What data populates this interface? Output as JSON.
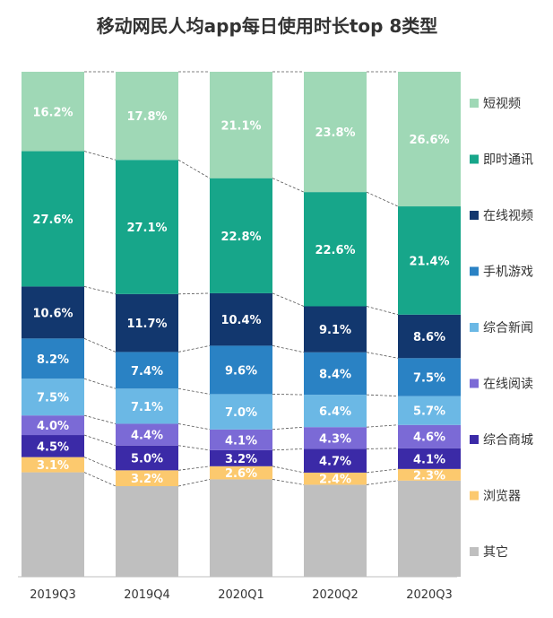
{
  "chart_data": {
    "type": "bar",
    "stacked": true,
    "percent": true,
    "title": "移动网民人均app每日使用时长top 8类型",
    "categories": [
      "2019Q3",
      "2019Q4",
      "2020Q1",
      "2020Q2",
      "2020Q3"
    ],
    "series": [
      {
        "name": "其它",
        "color": "#bfbfbf",
        "values": [
          21.3,
          18.3,
          19.3,
          18.2,
          19.0
        ],
        "labels": [
          "",
          "",
          "",
          "",
          ""
        ]
      },
      {
        "name": "浏览器",
        "color": "#fcc96e",
        "values": [
          3.1,
          3.2,
          2.6,
          2.4,
          2.3
        ],
        "labels": [
          "3.1%",
          "3.2%",
          "2.6%",
          "2.4%",
          "2.3%"
        ]
      },
      {
        "name": "综合商城",
        "color": "#3b2aa7",
        "values": [
          4.5,
          5.0,
          3.2,
          4.7,
          4.1
        ],
        "labels": [
          "4.5%",
          "5.0%",
          "3.2%",
          "4.7%",
          "4.1%"
        ]
      },
      {
        "name": "在线阅读",
        "color": "#7b6ad6",
        "values": [
          4.0,
          4.4,
          4.1,
          4.3,
          4.6
        ],
        "labels": [
          "4.0%",
          "4.4%",
          "4.1%",
          "4.3%",
          "4.6%"
        ]
      },
      {
        "name": "综合新闻",
        "color": "#6bb8e5",
        "values": [
          7.5,
          7.1,
          7.0,
          6.4,
          5.7
        ],
        "labels": [
          "7.5%",
          "7.1%",
          "7.0%",
          "6.4%",
          "5.7%"
        ]
      },
      {
        "name": "手机游戏",
        "color": "#2a82c4",
        "values": [
          8.2,
          7.4,
          9.6,
          8.4,
          7.5
        ],
        "labels": [
          "8.2%",
          "7.4%",
          "9.6%",
          "8.4%",
          "7.5%"
        ]
      },
      {
        "name": "在线视频",
        "color": "#12376e",
        "values": [
          10.6,
          11.7,
          10.4,
          9.1,
          8.6
        ],
        "labels": [
          "10.6%",
          "11.7%",
          "10.4%",
          "9.1%",
          "8.6%"
        ]
      },
      {
        "name": "即时通讯",
        "color": "#17a68a",
        "values": [
          27.6,
          27.1,
          22.8,
          22.6,
          21.4
        ],
        "labels": [
          "27.6%",
          "27.1%",
          "22.8%",
          "22.6%",
          "21.4%"
        ]
      },
      {
        "name": "短视频",
        "color": "#9fd8b6",
        "values": [
          16.2,
          17.8,
          21.1,
          23.8,
          26.6
        ],
        "labels": [
          "16.2%",
          "17.8%",
          "21.1%",
          "23.8%",
          "26.6%"
        ]
      }
    ],
    "legend_position": "right",
    "legend_order": [
      "短视频",
      "即时通讯",
      "在线视频",
      "手机游戏",
      "综合新闻",
      "在线阅读",
      "综合商城",
      "浏览器",
      "其它"
    ],
    "connector_lines": true,
    "ylim": [
      0,
      100
    ],
    "grid": false
  }
}
